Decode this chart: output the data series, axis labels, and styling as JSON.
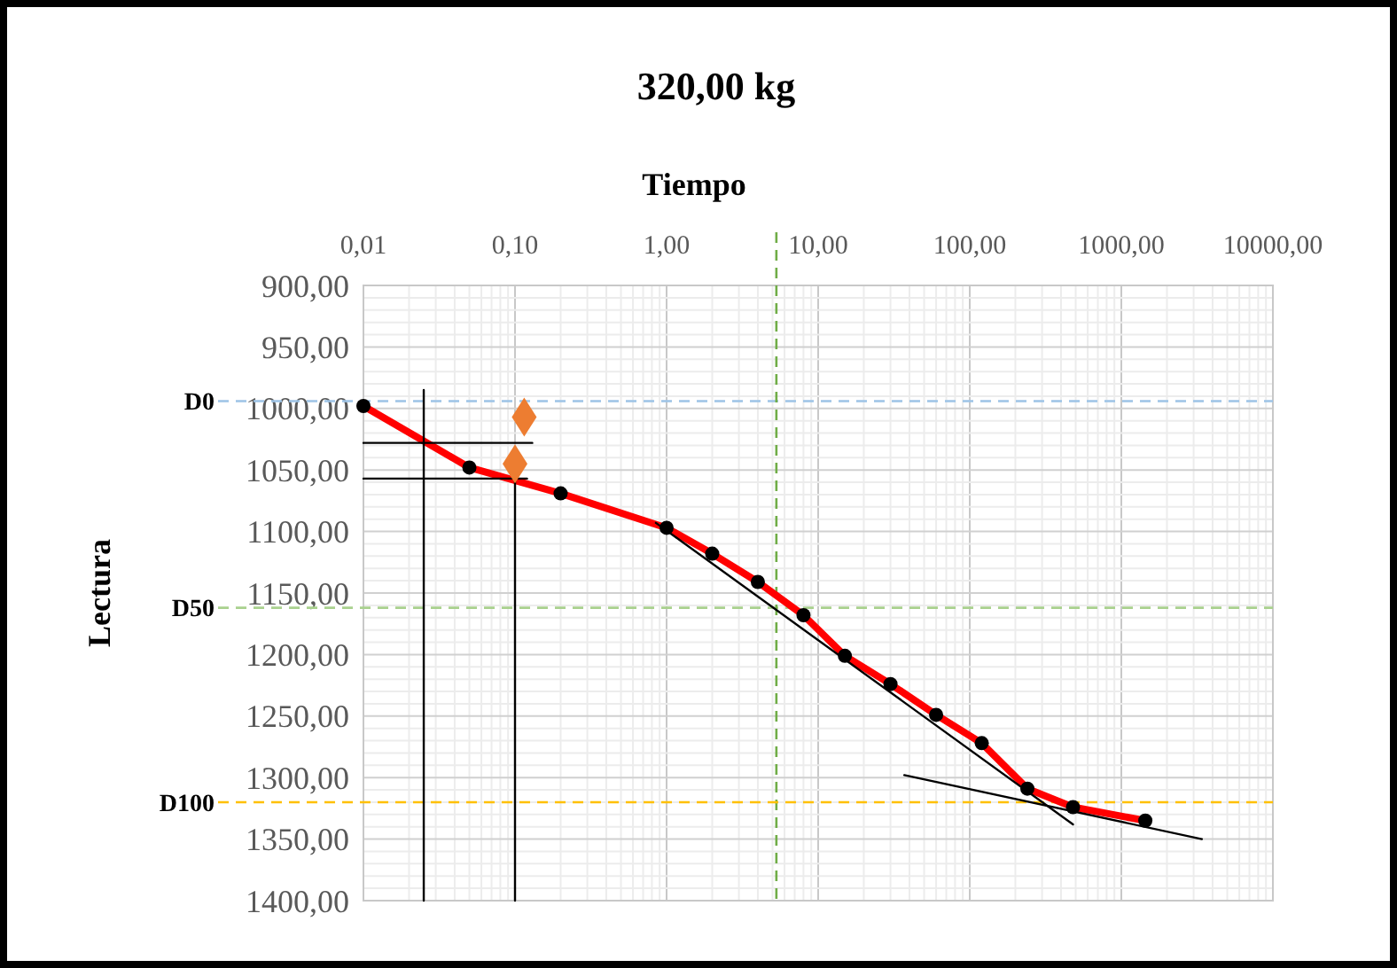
{
  "chart_data": {
    "type": "line",
    "title": "320,00 kg",
    "xlabel": "Tiempo",
    "ylabel": "Lectura",
    "log": "x",
    "grid": true,
    "xlim": [
      0.01,
      10000
    ],
    "xticks": [
      {
        "value": 0.01,
        "label": "0,01"
      },
      {
        "value": 0.1,
        "label": "0,10"
      },
      {
        "value": 1,
        "label": "1,00"
      },
      {
        "value": 10,
        "label": "10,00"
      },
      {
        "value": 100,
        "label": "100,00"
      },
      {
        "value": 1000,
        "label": "1000,00"
      },
      {
        "value": 10000,
        "label": "10000,00"
      }
    ],
    "ylim": [
      1400,
      900
    ],
    "yticks": [
      {
        "value": 900,
        "label": "900,00"
      },
      {
        "value": 950,
        "label": "950,00"
      },
      {
        "value": 1000,
        "label": "1000,00"
      },
      {
        "value": 1050,
        "label": "1050,00"
      },
      {
        "value": 1100,
        "label": "1100,00"
      },
      {
        "value": 1150,
        "label": "1150,00"
      },
      {
        "value": 1200,
        "label": "1200,00"
      },
      {
        "value": 1250,
        "label": "1250,00"
      },
      {
        "value": 1300,
        "label": "1300,00"
      },
      {
        "value": 1350,
        "label": "1350,00"
      },
      {
        "value": 1400,
        "label": "1400,00"
      }
    ],
    "series": [
      {
        "color": "#ff0000",
        "marker": "circle",
        "x": [
          0.01,
          0.05,
          0.2,
          1,
          2,
          4,
          8,
          15,
          30,
          60,
          120,
          240,
          480,
          1440
        ],
        "values": [
          998,
          1048,
          1069,
          1097,
          1118,
          1141,
          1168,
          1201,
          1224,
          1249,
          1272,
          1309,
          1324,
          1335
        ]
      },
      {
        "type": "scatter",
        "color": "#ed7d31",
        "marker": "diamond",
        "x": [
          0.115,
          0.1
        ],
        "values": [
          1007,
          1045
        ]
      },
      {
        "type": "line",
        "color": "#000000",
        "marker": "none",
        "x": [
          0.025,
          0.025
        ],
        "values": [
          985,
          1400
        ]
      },
      {
        "type": "line",
        "color": "#000000",
        "marker": "none",
        "x": [
          0.1,
          0.1
        ],
        "values": [
          1033,
          1400
        ]
      },
      {
        "type": "line",
        "color": "#000000",
        "marker": "none",
        "x": [
          0.01,
          0.13
        ],
        "values": [
          1028,
          1028
        ]
      },
      {
        "type": "line",
        "color": "#000000",
        "marker": "none",
        "x": [
          0.01,
          0.12
        ],
        "values": [
          1057,
          1057
        ]
      },
      {
        "type": "line",
        "color": "#000000",
        "marker": "none",
        "x": [
          0.85,
          480
        ],
        "values": [
          1093,
          1338
        ]
      },
      {
        "type": "line",
        "color": "#000000",
        "marker": "none",
        "x": [
          37,
          3400
        ],
        "values": [
          1298,
          1350
        ]
      }
    ],
    "ref_lines": [
      {
        "axis": "y",
        "value": 994,
        "label": "D0",
        "color": "#9dc3e6",
        "line_style": "dashed"
      },
      {
        "axis": "y",
        "value": 1162,
        "label": "D50",
        "color": "#a9d18e",
        "line_style": "dashed"
      },
      {
        "axis": "x",
        "value": 5.3,
        "color": "#70ad47",
        "line_style": "dashed"
      },
      {
        "axis": "y",
        "value": 1320,
        "label": "D100",
        "color": "#ffc000",
        "line_style": "dashed"
      }
    ]
  }
}
